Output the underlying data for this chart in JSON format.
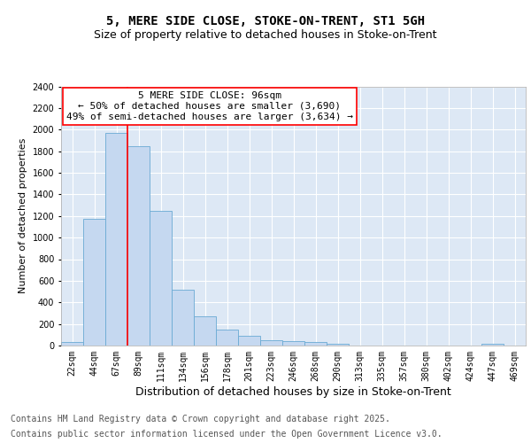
{
  "title": "5, MERE SIDE CLOSE, STOKE-ON-TRENT, ST1 5GH",
  "subtitle": "Size of property relative to detached houses in Stoke-on-Trent",
  "xlabel": "Distribution of detached houses by size in Stoke-on-Trent",
  "ylabel": "Number of detached properties",
  "categories": [
    "22sqm",
    "44sqm",
    "67sqm",
    "89sqm",
    "111sqm",
    "134sqm",
    "156sqm",
    "178sqm",
    "201sqm",
    "223sqm",
    "246sqm",
    "268sqm",
    "290sqm",
    "313sqm",
    "335sqm",
    "357sqm",
    "380sqm",
    "402sqm",
    "424sqm",
    "447sqm",
    "469sqm"
  ],
  "values": [
    30,
    1175,
    1970,
    1850,
    1245,
    515,
    270,
    150,
    90,
    50,
    40,
    30,
    15,
    0,
    0,
    0,
    0,
    0,
    0,
    15,
    0
  ],
  "bar_color": "#c5d8f0",
  "bar_edge_color": "#6aaad4",
  "background_color": "#dde8f5",
  "grid_color": "#ffffff",
  "annotation_line1": "5 MERE SIDE CLOSE: 96sqm",
  "annotation_line2": "← 50% of detached houses are smaller (3,690)",
  "annotation_line3": "49% of semi-detached houses are larger (3,634) →",
  "redline_bar_index": 3,
  "ylim": [
    0,
    2400
  ],
  "yticks": [
    0,
    200,
    400,
    600,
    800,
    1000,
    1200,
    1400,
    1600,
    1800,
    2000,
    2200,
    2400
  ],
  "footer_line1": "Contains HM Land Registry data © Crown copyright and database right 2025.",
  "footer_line2": "Contains public sector information licensed under the Open Government Licence v3.0.",
  "title_fontsize": 10,
  "subtitle_fontsize": 9,
  "xlabel_fontsize": 9,
  "ylabel_fontsize": 8,
  "tick_fontsize": 7,
  "annotation_fontsize": 8,
  "footer_fontsize": 7
}
